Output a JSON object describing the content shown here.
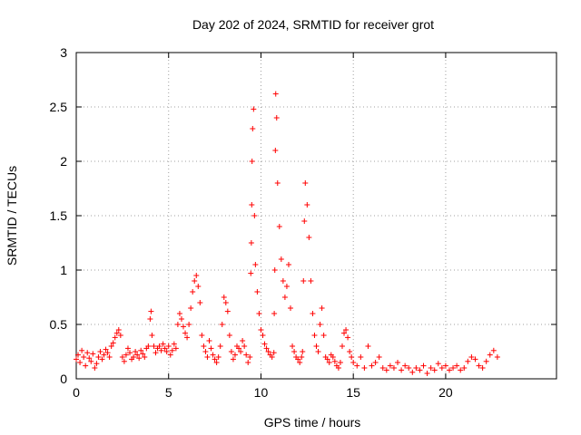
{
  "chart_data": {
    "type": "scatter",
    "title": "Day 202 of 2024, SRMTID for receiver grot",
    "xlabel": "GPS time / hours",
    "ylabel": "SRMTID / TECUs",
    "xlim": [
      0,
      26
    ],
    "ylim": [
      0,
      3
    ],
    "xticks": [
      0,
      5,
      10,
      15,
      20
    ],
    "xtick_labels": [
      "0",
      "5",
      "10",
      "15",
      "20"
    ],
    "yticks": [
      0,
      0.5,
      1,
      1.5,
      2,
      2.5,
      3
    ],
    "ytick_labels": [
      "0",
      "0.5",
      "1",
      "1.5",
      "2",
      "2.5",
      "3"
    ],
    "grid": true,
    "marker": "+",
    "color": "#ff0000",
    "series": [
      {
        "name": "SRMTID",
        "x": [
          0.0,
          0.1,
          0.2,
          0.3,
          0.4,
          0.5,
          0.6,
          0.7,
          0.8,
          0.9,
          1.0,
          1.1,
          1.2,
          1.3,
          1.4,
          1.5,
          1.6,
          1.7,
          1.8,
          1.9,
          2.0,
          2.1,
          2.2,
          2.3,
          2.4,
          2.5,
          2.6,
          2.7,
          2.8,
          2.9,
          3.0,
          3.1,
          3.2,
          3.3,
          3.4,
          3.5,
          3.6,
          3.7,
          3.8,
          3.9,
          4.0,
          4.05,
          4.1,
          4.2,
          4.3,
          4.4,
          4.5,
          4.6,
          4.7,
          4.8,
          4.9,
          5.0,
          5.1,
          5.2,
          5.3,
          5.4,
          5.5,
          5.6,
          5.7,
          5.8,
          5.9,
          6.0,
          6.1,
          6.2,
          6.3,
          6.4,
          6.5,
          6.6,
          6.7,
          6.8,
          6.9,
          7.0,
          7.1,
          7.2,
          7.3,
          7.4,
          7.5,
          7.6,
          7.7,
          7.8,
          7.9,
          8.0,
          8.1,
          8.2,
          8.3,
          8.4,
          8.5,
          8.6,
          8.7,
          8.8,
          8.9,
          9.0,
          9.1,
          9.2,
          9.3,
          9.4,
          9.45,
          9.48,
          9.5,
          9.52,
          9.55,
          9.6,
          9.65,
          9.7,
          9.8,
          9.9,
          10.0,
          10.1,
          10.2,
          10.3,
          10.4,
          10.5,
          10.6,
          10.7,
          10.72,
          10.75,
          10.78,
          10.8,
          10.85,
          10.9,
          11.0,
          11.1,
          11.2,
          11.3,
          11.4,
          11.5,
          11.6,
          11.7,
          11.8,
          11.9,
          12.0,
          12.1,
          12.2,
          12.25,
          12.3,
          12.35,
          12.4,
          12.5,
          12.6,
          12.7,
          12.8,
          12.9,
          13.0,
          13.1,
          13.2,
          13.3,
          13.4,
          13.5,
          13.6,
          13.7,
          13.8,
          13.9,
          14.0,
          14.1,
          14.2,
          14.3,
          14.4,
          14.5,
          14.6,
          14.7,
          14.8,
          14.9,
          15.0,
          15.2,
          15.4,
          15.6,
          15.8,
          16.0,
          16.2,
          16.4,
          16.6,
          16.8,
          17.0,
          17.2,
          17.4,
          17.6,
          17.8,
          18.0,
          18.2,
          18.4,
          18.6,
          18.8,
          19.0,
          19.2,
          19.4,
          19.6,
          19.8,
          20.0,
          20.2,
          20.4,
          20.6,
          20.8,
          21.0,
          21.2,
          21.4,
          21.6,
          21.8,
          22.0,
          22.2,
          22.4,
          22.6,
          22.8
        ],
        "y": [
          0.18,
          0.22,
          0.15,
          0.26,
          0.2,
          0.12,
          0.24,
          0.19,
          0.16,
          0.23,
          0.1,
          0.14,
          0.2,
          0.25,
          0.18,
          0.22,
          0.27,
          0.24,
          0.2,
          0.3,
          0.33,
          0.38,
          0.42,
          0.45,
          0.4,
          0.2,
          0.16,
          0.22,
          0.28,
          0.24,
          0.18,
          0.2,
          0.25,
          0.22,
          0.19,
          0.26,
          0.23,
          0.2,
          0.28,
          0.3,
          0.55,
          0.62,
          0.4,
          0.3,
          0.24,
          0.28,
          0.3,
          0.26,
          0.32,
          0.28,
          0.25,
          0.3,
          0.22,
          0.26,
          0.32,
          0.28,
          0.5,
          0.6,
          0.55,
          0.48,
          0.42,
          0.38,
          0.5,
          0.65,
          0.8,
          0.9,
          0.95,
          0.85,
          0.7,
          0.4,
          0.3,
          0.25,
          0.2,
          0.35,
          0.28,
          0.22,
          0.18,
          0.15,
          0.2,
          0.3,
          0.5,
          0.75,
          0.7,
          0.62,
          0.4,
          0.25,
          0.18,
          0.22,
          0.3,
          0.28,
          0.25,
          0.35,
          0.3,
          0.22,
          0.15,
          0.2,
          0.97,
          1.25,
          1.6,
          2.0,
          2.3,
          2.48,
          1.5,
          1.05,
          0.8,
          0.6,
          0.45,
          0.4,
          0.32,
          0.28,
          0.25,
          0.22,
          0.2,
          0.24,
          0.6,
          1.0,
          2.1,
          2.62,
          2.4,
          1.8,
          1.4,
          1.1,
          0.9,
          0.75,
          0.85,
          1.05,
          0.65,
          0.3,
          0.25,
          0.2,
          0.18,
          0.15,
          0.2,
          0.25,
          0.9,
          1.45,
          1.8,
          1.6,
          1.3,
          0.9,
          0.6,
          0.4,
          0.3,
          0.25,
          0.5,
          0.65,
          0.4,
          0.2,
          0.18,
          0.15,
          0.22,
          0.2,
          0.16,
          0.12,
          0.1,
          0.15,
          0.3,
          0.42,
          0.45,
          0.38,
          0.25,
          0.2,
          0.15,
          0.12,
          0.2,
          0.1,
          0.3,
          0.12,
          0.15,
          0.2,
          0.1,
          0.08,
          0.12,
          0.1,
          0.15,
          0.08,
          0.12,
          0.1,
          0.06,
          0.1,
          0.08,
          0.12,
          0.05,
          0.1,
          0.08,
          0.14,
          0.1,
          0.12,
          0.08,
          0.1,
          0.12,
          0.08,
          0.1,
          0.16,
          0.2,
          0.18,
          0.12,
          0.1,
          0.16,
          0.22,
          0.26,
          0.2
        ]
      }
    ]
  }
}
